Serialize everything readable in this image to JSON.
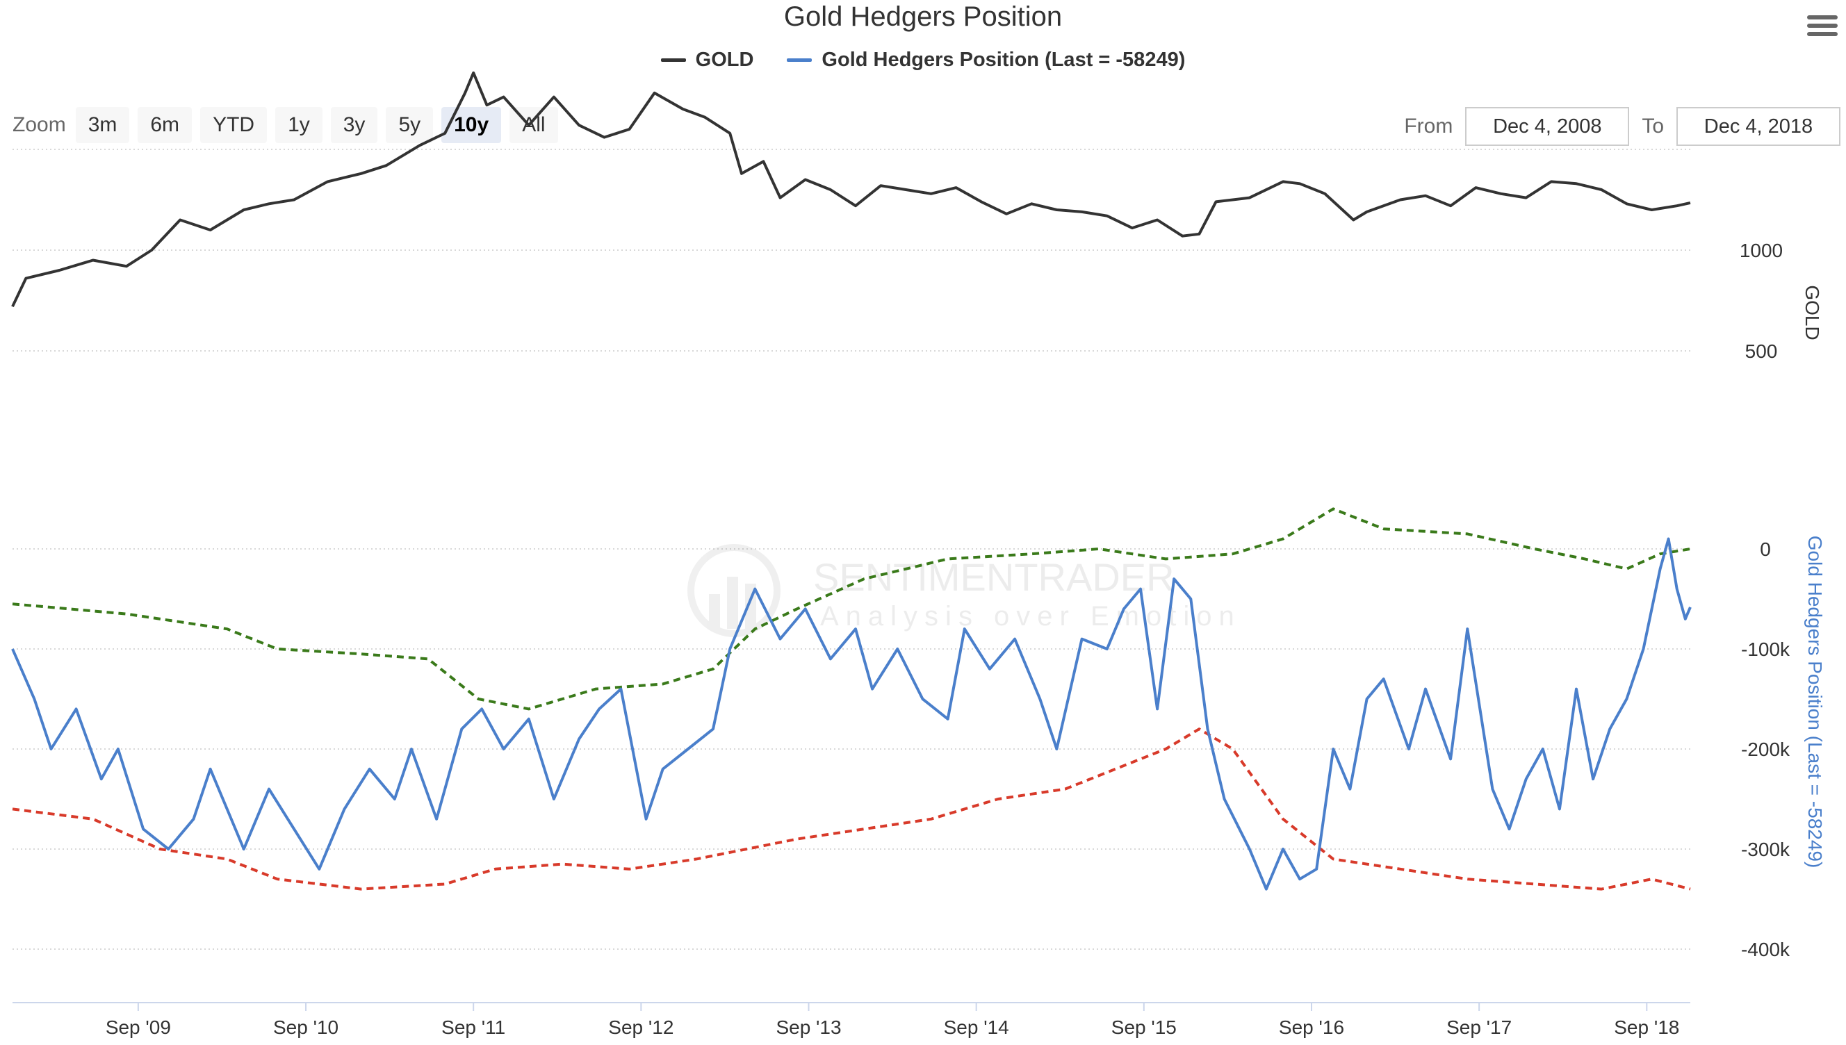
{
  "title": "Gold Hedgers Position",
  "legend": [
    {
      "label": "GOLD",
      "color": "#333333"
    },
    {
      "label": "Gold Hedgers Position (Last = -58249)",
      "color": "#4a7fcb"
    }
  ],
  "zoom": {
    "label": "Zoom",
    "buttons": [
      "3m",
      "6m",
      "YTD",
      "1y",
      "3y",
      "5y",
      "10y",
      "All"
    ],
    "active": "10y"
  },
  "range": {
    "from_label": "From",
    "from_value": "Dec 4, 2008",
    "to_label": "To",
    "to_value": "Dec 4, 2018"
  },
  "watermark": {
    "main": "SENTIMENTRADER",
    "sub": "Analysis over Emotion"
  },
  "chart_data": [
    {
      "type": "line",
      "series": [
        {
          "name": "GOLD",
          "color": "#333333"
        }
      ],
      "ylabel": "GOLD",
      "yticks": [
        "500",
        "1000"
      ],
      "points": [
        [
          2008.92,
          720
        ],
        [
          2009.0,
          860
        ],
        [
          2009.2,
          900
        ],
        [
          2009.4,
          950
        ],
        [
          2009.6,
          920
        ],
        [
          2009.75,
          1000
        ],
        [
          2009.92,
          1150
        ],
        [
          2010.1,
          1100
        ],
        [
          2010.3,
          1200
        ],
        [
          2010.45,
          1230
        ],
        [
          2010.6,
          1250
        ],
        [
          2010.8,
          1340
        ],
        [
          2011.0,
          1380
        ],
        [
          2011.15,
          1420
        ],
        [
          2011.35,
          1520
        ],
        [
          2011.5,
          1580
        ],
        [
          2011.62,
          1780
        ],
        [
          2011.67,
          1880
        ],
        [
          2011.75,
          1720
        ],
        [
          2011.85,
          1760
        ],
        [
          2012.0,
          1620
        ],
        [
          2012.15,
          1760
        ],
        [
          2012.3,
          1620
        ],
        [
          2012.45,
          1560
        ],
        [
          2012.6,
          1600
        ],
        [
          2012.75,
          1780
        ],
        [
          2012.92,
          1700
        ],
        [
          2013.05,
          1660
        ],
        [
          2013.2,
          1580
        ],
        [
          2013.27,
          1380
        ],
        [
          2013.4,
          1440
        ],
        [
          2013.5,
          1260
        ],
        [
          2013.65,
          1350
        ],
        [
          2013.8,
          1300
        ],
        [
          2013.95,
          1220
        ],
        [
          2014.1,
          1320
        ],
        [
          2014.25,
          1300
        ],
        [
          2014.4,
          1280
        ],
        [
          2014.55,
          1310
        ],
        [
          2014.7,
          1240
        ],
        [
          2014.85,
          1180
        ],
        [
          2015.0,
          1230
        ],
        [
          2015.15,
          1200
        ],
        [
          2015.3,
          1190
        ],
        [
          2015.45,
          1170
        ],
        [
          2015.6,
          1110
        ],
        [
          2015.75,
          1150
        ],
        [
          2015.9,
          1070
        ],
        [
          2016.0,
          1080
        ],
        [
          2016.1,
          1240
        ],
        [
          2016.3,
          1260
        ],
        [
          2016.5,
          1340
        ],
        [
          2016.6,
          1330
        ],
        [
          2016.75,
          1280
        ],
        [
          2016.92,
          1150
        ],
        [
          2017.0,
          1190
        ],
        [
          2017.2,
          1250
        ],
        [
          2017.35,
          1270
        ],
        [
          2017.5,
          1220
        ],
        [
          2017.65,
          1310
        ],
        [
          2017.8,
          1280
        ],
        [
          2017.95,
          1260
        ],
        [
          2018.1,
          1340
        ],
        [
          2018.25,
          1330
        ],
        [
          2018.4,
          1300
        ],
        [
          2018.55,
          1230
        ],
        [
          2018.7,
          1200
        ],
        [
          2018.85,
          1220
        ],
        [
          2018.93,
          1235
        ]
      ]
    },
    {
      "type": "line",
      "series": [
        {
          "name": "Gold Hedgers Position (Last = -58249)",
          "color": "#4a7fcb"
        },
        {
          "color": "#3a7a1a",
          "dash": true
        },
        {
          "color": "#d83a2a",
          "dash": true
        }
      ],
      "ylabel": "Gold Hedgers Position (Last = -58249)",
      "yticks": [
        "-400k",
        "-300k",
        "-200k",
        "-100k",
        "0"
      ],
      "xticks": [
        "Sep '09",
        "Sep '10",
        "Sep '11",
        "Sep '12",
        "Sep '13",
        "Sep '14",
        "Sep '15",
        "Sep '16",
        "Sep '17",
        "Sep '18"
      ],
      "hedgers": [
        [
          2008.92,
          -100000
        ],
        [
          2009.05,
          -150000
        ],
        [
          2009.15,
          -200000
        ],
        [
          2009.3,
          -160000
        ],
        [
          2009.45,
          -230000
        ],
        [
          2009.55,
          -200000
        ],
        [
          2009.7,
          -280000
        ],
        [
          2009.85,
          -300000
        ],
        [
          2010.0,
          -270000
        ],
        [
          2010.1,
          -220000
        ],
        [
          2010.2,
          -260000
        ],
        [
          2010.3,
          -300000
        ],
        [
          2010.45,
          -240000
        ],
        [
          2010.6,
          -280000
        ],
        [
          2010.75,
          -320000
        ],
        [
          2010.9,
          -260000
        ],
        [
          2011.05,
          -220000
        ],
        [
          2011.2,
          -250000
        ],
        [
          2011.3,
          -200000
        ],
        [
          2011.45,
          -270000
        ],
        [
          2011.6,
          -180000
        ],
        [
          2011.72,
          -160000
        ],
        [
          2011.85,
          -200000
        ],
        [
          2012.0,
          -170000
        ],
        [
          2012.15,
          -250000
        ],
        [
          2012.3,
          -190000
        ],
        [
          2012.42,
          -160000
        ],
        [
          2012.55,
          -140000
        ],
        [
          2012.7,
          -270000
        ],
        [
          2012.8,
          -220000
        ],
        [
          2012.95,
          -200000
        ],
        [
          2013.1,
          -180000
        ],
        [
          2013.2,
          -100000
        ],
        [
          2013.35,
          -40000
        ],
        [
          2013.5,
          -90000
        ],
        [
          2013.65,
          -60000
        ],
        [
          2013.8,
          -110000
        ],
        [
          2013.95,
          -80000
        ],
        [
          2014.05,
          -140000
        ],
        [
          2014.2,
          -100000
        ],
        [
          2014.35,
          -150000
        ],
        [
          2014.5,
          -170000
        ],
        [
          2014.6,
          -80000
        ],
        [
          2014.75,
          -120000
        ],
        [
          2014.9,
          -90000
        ],
        [
          2015.05,
          -150000
        ],
        [
          2015.15,
          -200000
        ],
        [
          2015.3,
          -90000
        ],
        [
          2015.45,
          -100000
        ],
        [
          2015.55,
          -60000
        ],
        [
          2015.65,
          -40000
        ],
        [
          2015.75,
          -160000
        ],
        [
          2015.85,
          -30000
        ],
        [
          2015.95,
          -50000
        ],
        [
          2016.05,
          -180000
        ],
        [
          2016.15,
          -250000
        ],
        [
          2016.3,
          -300000
        ],
        [
          2016.4,
          -340000
        ],
        [
          2016.5,
          -300000
        ],
        [
          2016.6,
          -330000
        ],
        [
          2016.7,
          -320000
        ],
        [
          2016.8,
          -200000
        ],
        [
          2016.9,
          -240000
        ],
        [
          2017.0,
          -150000
        ],
        [
          2017.1,
          -130000
        ],
        [
          2017.25,
          -200000
        ],
        [
          2017.35,
          -140000
        ],
        [
          2017.5,
          -210000
        ],
        [
          2017.6,
          -80000
        ],
        [
          2017.75,
          -240000
        ],
        [
          2017.85,
          -280000
        ],
        [
          2017.95,
          -230000
        ],
        [
          2018.05,
          -200000
        ],
        [
          2018.15,
          -260000
        ],
        [
          2018.25,
          -140000
        ],
        [
          2018.35,
          -230000
        ],
        [
          2018.45,
          -180000
        ],
        [
          2018.55,
          -150000
        ],
        [
          2018.65,
          -100000
        ],
        [
          2018.75,
          -20000
        ],
        [
          2018.8,
          10000
        ],
        [
          2018.85,
          -40000
        ],
        [
          2018.9,
          -70000
        ],
        [
          2018.93,
          -58249
        ]
      ],
      "upper_band": [
        [
          2008.92,
          -55000
        ],
        [
          2009.6,
          -65000
        ],
        [
          2010.2,
          -80000
        ],
        [
          2010.5,
          -100000
        ],
        [
          2011.0,
          -105000
        ],
        [
          2011.4,
          -110000
        ],
        [
          2011.7,
          -150000
        ],
        [
          2012.0,
          -160000
        ],
        [
          2012.4,
          -140000
        ],
        [
          2012.8,
          -135000
        ],
        [
          2013.1,
          -120000
        ],
        [
          2013.35,
          -80000
        ],
        [
          2013.6,
          -60000
        ],
        [
          2014.0,
          -30000
        ],
        [
          2014.5,
          -10000
        ],
        [
          2015.0,
          -5000
        ],
        [
          2015.4,
          0
        ],
        [
          2015.8,
          -10000
        ],
        [
          2016.2,
          -5000
        ],
        [
          2016.5,
          10000
        ],
        [
          2016.8,
          40000
        ],
        [
          2017.1,
          20000
        ],
        [
          2017.6,
          15000
        ],
        [
          2018.0,
          0
        ],
        [
          2018.3,
          -10000
        ],
        [
          2018.55,
          -20000
        ],
        [
          2018.75,
          -5000
        ],
        [
          2018.93,
          0
        ]
      ],
      "lower_band": [
        [
          2008.92,
          -260000
        ],
        [
          2009.4,
          -270000
        ],
        [
          2009.8,
          -300000
        ],
        [
          2010.2,
          -310000
        ],
        [
          2010.5,
          -330000
        ],
        [
          2011.0,
          -340000
        ],
        [
          2011.5,
          -335000
        ],
        [
          2011.8,
          -320000
        ],
        [
          2012.2,
          -315000
        ],
        [
          2012.6,
          -320000
        ],
        [
          2013.0,
          -310000
        ],
        [
          2013.3,
          -300000
        ],
        [
          2013.6,
          -290000
        ],
        [
          2014.0,
          -280000
        ],
        [
          2014.4,
          -270000
        ],
        [
          2014.8,
          -250000
        ],
        [
          2015.2,
          -240000
        ],
        [
          2015.5,
          -220000
        ],
        [
          2015.8,
          -200000
        ],
        [
          2016.0,
          -180000
        ],
        [
          2016.2,
          -200000
        ],
        [
          2016.5,
          -270000
        ],
        [
          2016.8,
          -310000
        ],
        [
          2017.2,
          -320000
        ],
        [
          2017.6,
          -330000
        ],
        [
          2018.0,
          -335000
        ],
        [
          2018.4,
          -340000
        ],
        [
          2018.7,
          -330000
        ],
        [
          2018.93,
          -340000
        ]
      ]
    }
  ]
}
